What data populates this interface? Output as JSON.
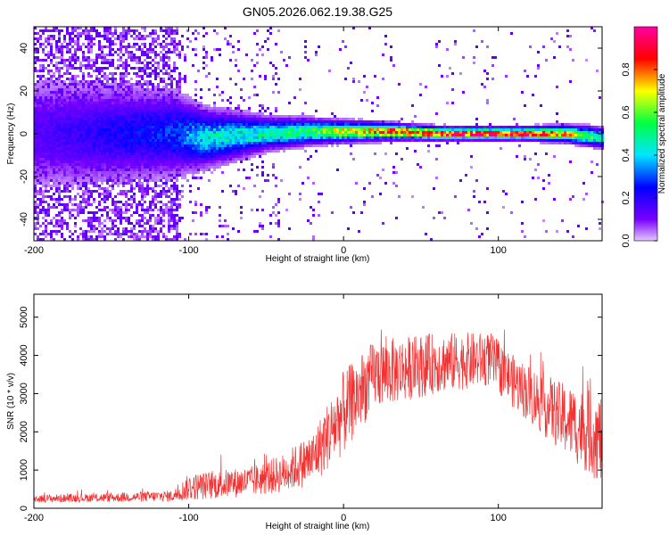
{
  "title": "GN05.2026.062.19.38.G25",
  "chart_data": [
    {
      "type": "heatmap",
      "xlabel": "Height of straight line (km)",
      "ylabel": "Frequency (Hz)",
      "xlim": [
        -200,
        167
      ],
      "ylim": [
        -50,
        50
      ],
      "xticks": [
        -200,
        -100,
        0,
        100
      ],
      "yticks": [
        -40,
        -20,
        0,
        20,
        40
      ],
      "colorbar": {
        "label": "Normalized spectral amplitude",
        "range": [
          0,
          1
        ],
        "ticks": [
          "0.0",
          "0.2",
          "0.4",
          "0.6",
          "0.8"
        ]
      },
      "ridge": [
        {
          "x": -200,
          "center": 0,
          "width": 14,
          "peak": 0.15
        },
        {
          "x": -110,
          "center": 0,
          "width": 10,
          "peak": 0.3
        },
        {
          "x": -90,
          "center": -2,
          "width": 7,
          "peak": 0.45
        },
        {
          "x": -50,
          "center": 0,
          "width": 4,
          "peak": 0.5
        },
        {
          "x": -20,
          "center": 1,
          "width": 3,
          "peak": 0.6
        },
        {
          "x": 0,
          "center": 1,
          "width": 2.5,
          "peak": 0.75
        },
        {
          "x": 30,
          "center": 1,
          "width": 2,
          "peak": 0.9
        },
        {
          "x": 65,
          "center": 0,
          "width": 1.5,
          "peak": 1.0
        },
        {
          "x": 115,
          "center": 0,
          "width": 1.5,
          "peak": 1.0
        },
        {
          "x": 145,
          "center": 0,
          "width": 2,
          "peak": 0.8
        },
        {
          "x": 167,
          "center": -2,
          "width": 2.5,
          "peak": 0.5
        }
      ]
    },
    {
      "type": "line",
      "xlabel": "Height of straight line (km)",
      "ylabel": "SNR (10 * v/v)",
      "xlim": [
        -200,
        167
      ],
      "ylim": [
        0,
        5600
      ],
      "xticks": [
        -200,
        -100,
        0,
        100
      ],
      "yticks": [
        0,
        1000,
        2000,
        3000,
        4000,
        5000
      ],
      "series": [
        {
          "name": "SNR",
          "color": "#f03232",
          "envelope": [
            {
              "x": -200,
              "mean": 250,
              "spread": 100
            },
            {
              "x": -150,
              "mean": 280,
              "spread": 120
            },
            {
              "x": -110,
              "mean": 320,
              "spread": 150
            },
            {
              "x": -100,
              "mean": 550,
              "spread": 350
            },
            {
              "x": -60,
              "mean": 700,
              "spread": 400
            },
            {
              "x": -40,
              "mean": 900,
              "spread": 500
            },
            {
              "x": -20,
              "mean": 1300,
              "spread": 700
            },
            {
              "x": 0,
              "mean": 2500,
              "spread": 1100
            },
            {
              "x": 20,
              "mean": 3500,
              "spread": 900
            },
            {
              "x": 60,
              "mean": 3800,
              "spread": 800
            },
            {
              "x": 95,
              "mean": 3900,
              "spread": 700
            },
            {
              "x": 110,
              "mean": 3300,
              "spread": 700
            },
            {
              "x": 140,
              "mean": 2400,
              "spread": 900
            },
            {
              "x": 167,
              "mean": 1800,
              "spread": 1200
            }
          ]
        }
      ]
    }
  ]
}
